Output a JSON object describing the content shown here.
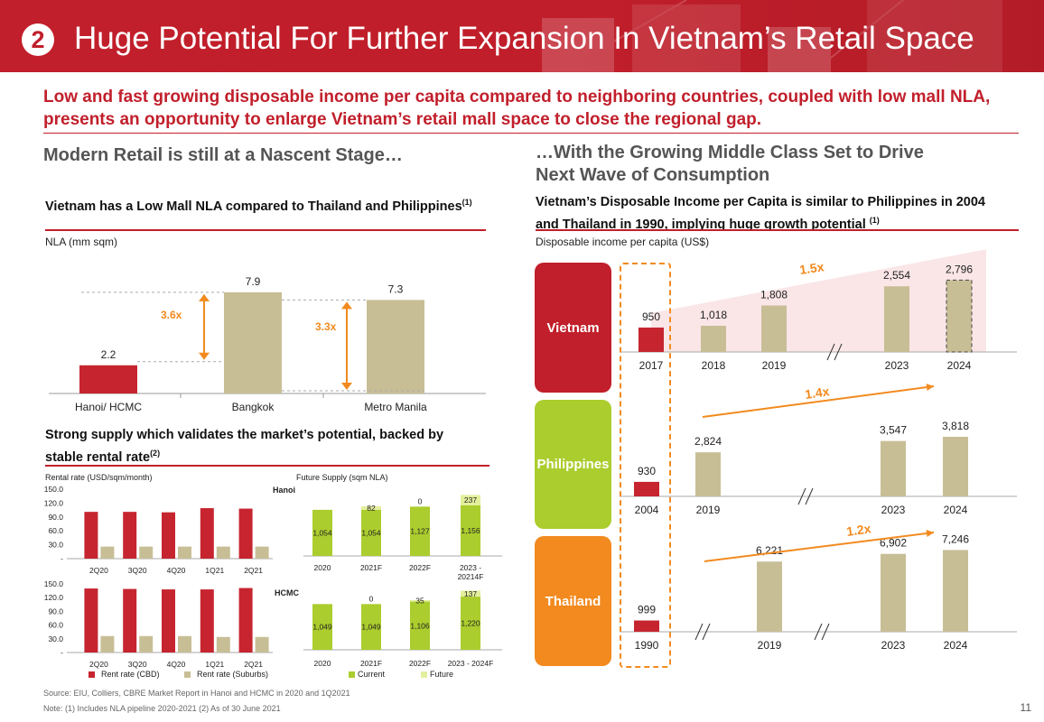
{
  "header": {
    "number": "2",
    "title": "Huge Potential For Further Expansion In Vietnam’s Retail Space"
  },
  "subtitle": "Low and fast growing disposable income per capita compared to neighboring countries, coupled with low mall NLA, presents an opportunity to enlarge Vietnam’s retail mall space to close the regional gap.",
  "left": {
    "section_title": "Modern Retail is still at a Nascent Stage…",
    "nla_title": "Vietnam has a Low Mall NLA compared to Thailand and Philippines",
    "nla_title_sup": "(1)",
    "nla_unit": "NLA (mm sqm)",
    "supply_title": "Strong supply which validates the market’s potential, backed by stable rental rate",
    "supply_title_sup": "(2)",
    "rent_unit": "Rental rate (USD/sqm/month)",
    "future_unit": "Future Supply (sqm NLA)",
    "hanoi_label": "Hanoi",
    "hcmc_label": "HCMC"
  },
  "right": {
    "section_title_1": "…With the Growing Middle Class Set to Drive",
    "section_title_2": "Next Wave of Consumption",
    "income_title": "Vietnam’s Disposable Income per Capita is similar to Philippines in 2004 and Thailand in 1990, implying huge growth potential",
    "income_title_sup": "(1)",
    "income_unit": "Disposable income per capita (US$)"
  },
  "colors": {
    "red": "#c11f2b",
    "tan": "#c8be96",
    "orange": "#f28a1f",
    "green": "#abcd2e",
    "bar_red": "#c62530"
  },
  "chart_data": [
    {
      "type": "bar",
      "id": "nla",
      "categories": [
        "Hanoi/ HCMC",
        "Bangkok",
        "Metro Manila"
      ],
      "values": [
        2.2,
        7.9,
        7.3
      ],
      "value_labels": [
        "2.2",
        "7.9",
        "7.3"
      ],
      "annotations": [
        "3.6x",
        "3.3x"
      ],
      "ylabel": "NLA (mm sqm)"
    },
    {
      "type": "bar",
      "id": "hanoi_rent",
      "categories": [
        "2Q20",
        "3Q20",
        "4Q20",
        "1Q21",
        "2Q21"
      ],
      "yticks": [
        "150.0",
        "120.0",
        "90.0",
        "60.0",
        "30.0",
        "-"
      ],
      "ylim": [
        0,
        150
      ],
      "series": [
        {
          "name": "Rent rate (CBD)",
          "values": [
            101,
            101,
            100,
            109,
            108
          ]
        },
        {
          "name": "Rent rate (Suburbs)",
          "values": [
            26,
            26,
            26,
            26,
            26
          ]
        }
      ]
    },
    {
      "type": "bar",
      "id": "hcmc_rent",
      "categories": [
        "2Q20",
        "3Q20",
        "4Q20",
        "1Q21",
        "2Q21"
      ],
      "yticks": [
        "150.0",
        "120.0",
        "90.0",
        "60.0",
        "30.0",
        "-"
      ],
      "ylim": [
        0,
        150
      ],
      "series": [
        {
          "name": "Rent rate (CBD)",
          "values": [
            140,
            139,
            138,
            138,
            141
          ]
        },
        {
          "name": "Rent rate (Suburbs)",
          "values": [
            36,
            36,
            36,
            34,
            34
          ]
        }
      ]
    },
    {
      "type": "bar",
      "id": "hanoi_supply",
      "stacked": true,
      "categories": [
        "2020",
        "2021F",
        "2022F",
        "2023 - 20214F"
      ],
      "series": [
        {
          "name": "Current",
          "values": [
            1054,
            1054,
            1127,
            1156
          ],
          "labels": [
            "1,054",
            "1,054",
            "1,127",
            "1,156"
          ]
        },
        {
          "name": "Future",
          "values": [
            0,
            82,
            0,
            237
          ],
          "labels": [
            "",
            "82",
            "0",
            "237"
          ]
        }
      ]
    },
    {
      "type": "bar",
      "id": "hcmc_supply",
      "stacked": true,
      "categories": [
        "2020",
        "2021F",
        "2022F",
        "2023 - 2024F"
      ],
      "series": [
        {
          "name": "Current",
          "values": [
            1049,
            1049,
            1106,
            1220
          ],
          "labels": [
            "1,049",
            "1,049",
            "1,106",
            "1,220"
          ]
        },
        {
          "name": "Future",
          "values": [
            0,
            0,
            35,
            137
          ],
          "labels": [
            "",
            "0",
            "35",
            "137"
          ]
        }
      ]
    },
    {
      "type": "bar",
      "id": "vietnam_income",
      "country": "Vietnam",
      "categories": [
        "2017",
        "2018",
        "2019",
        "2023",
        "2024"
      ],
      "values": [
        950,
        1018,
        1808,
        2554,
        2796
      ],
      "value_labels": [
        "950",
        "1,018",
        "1,808",
        "2,554",
        "2,796"
      ],
      "annotation": "1.5x"
    },
    {
      "type": "bar",
      "id": "philippines_income",
      "country": "Philippines",
      "categories": [
        "2004",
        "2019",
        "2023",
        "2024"
      ],
      "values": [
        930,
        2824,
        3547,
        3818
      ],
      "value_labels": [
        "930",
        "2,824",
        "3,547",
        "3,818"
      ],
      "annotation": "1.4x"
    },
    {
      "type": "bar",
      "id": "thailand_income",
      "country": "Thailand",
      "categories": [
        "1990",
        "2019",
        "2023",
        "2024"
      ],
      "values": [
        999,
        6221,
        6902,
        7246
      ],
      "value_labels": [
        "999",
        "6,221",
        "6,902",
        "7,246"
      ],
      "annotation": "1.2x"
    }
  ],
  "legend": {
    "cbd": "Rent rate (CBD)",
    "suburbs": "Rent rate (Suburbs)",
    "current": "Current",
    "future": "Future"
  },
  "footer": {
    "source": "Source: EIU, Colliers, CBRE Market Report in Hanoi and HCMC in 2020 and 1Q2021",
    "note": "Note: (1) Includes NLA pipeline 2020-2021  (2) As of 30 June 2021",
    "page": "11"
  }
}
